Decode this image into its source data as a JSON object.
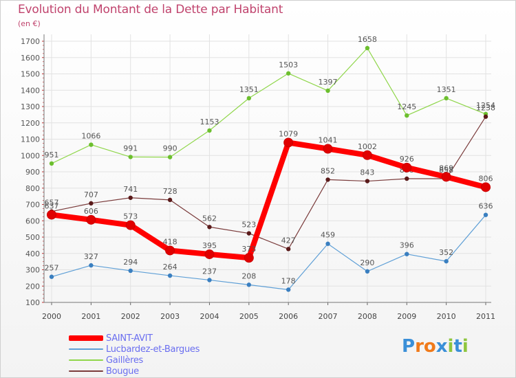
{
  "header": {
    "title": "Evolution du Montant de la Dette par Habitant",
    "subtitle": "(en €)"
  },
  "logo": {
    "text": "Proxiti",
    "letters": [
      {
        "ch": "P",
        "color": "#3a8fd8"
      },
      {
        "ch": "r",
        "color": "#f07a1a"
      },
      {
        "ch": "o",
        "color": "#f07a1a"
      },
      {
        "ch": "x",
        "color": "#3a8fd8"
      },
      {
        "ch": "i",
        "color": "#8ec63f"
      },
      {
        "ch": "t",
        "color": "#3a8fd8"
      },
      {
        "ch": "i",
        "color": "#8ec63f"
      }
    ]
  },
  "chart_data": {
    "type": "line",
    "x": [
      "2000",
      "2001",
      "2002",
      "2003",
      "2004",
      "2005",
      "2006",
      "2007",
      "2008",
      "2009",
      "2010",
      "2011"
    ],
    "ylim": [
      100,
      1700
    ],
    "yticks": [
      100,
      200,
      300,
      400,
      500,
      600,
      700,
      800,
      900,
      1000,
      1100,
      1200,
      1300,
      1400,
      1500,
      1600,
      1700
    ],
    "grid": true,
    "legend_position": "bottom-left",
    "series": [
      {
        "name": "Gaillères",
        "color": "#8fd64a",
        "marker": "#6cbf2e",
        "values": [
          951,
          1066,
          991,
          990,
          1153,
          1351,
          1503,
          1397,
          1658,
          1245,
          1351,
          1254
        ],
        "labels": [
          "951",
          "1066",
          "991",
          "990",
          "1153",
          "1351",
          "1503",
          "1397",
          "1658",
          "1245",
          "1351",
          "1254"
        ]
      },
      {
        "name": "Bougue",
        "color": "#7a3b3b",
        "marker": "#5a1a1a",
        "values": [
          657,
          707,
          741,
          728,
          562,
          523,
          427,
          852,
          843,
          858,
          858,
          1238
        ],
        "labels": [
          "657",
          "707",
          "741",
          "728",
          "562",
          "523",
          "427",
          "852",
          "843",
          "858",
          "858",
          "1238"
        ]
      },
      {
        "name": "Lucbardez-et-Bargues",
        "color": "#5e9fd6",
        "marker": "#3a7fc0",
        "values": [
          257,
          327,
          294,
          264,
          237,
          208,
          178,
          459,
          290,
          396,
          352,
          636
        ],
        "labels": [
          "257",
          "327",
          "294",
          "264",
          "237",
          "208",
          "178",
          "459",
          "290",
          "396",
          "352",
          "636"
        ]
      },
      {
        "name": "SAINT-AVIT",
        "color": "#ff0000",
        "marker": "#e00000",
        "values": [
          637,
          606,
          573,
          418,
          395,
          373,
          1079,
          1041,
          1002,
          926,
          869,
          806
        ],
        "labels": [
          "637",
          "606",
          "573",
          "418",
          "395",
          "373",
          "1079",
          "1041",
          "1002",
          "926",
          "869",
          "806"
        ]
      }
    ],
    "legend_order": [
      "SAINT-AVIT",
      "Lucbardez-et-Bargues",
      "Gaillères",
      "Bougue"
    ]
  }
}
